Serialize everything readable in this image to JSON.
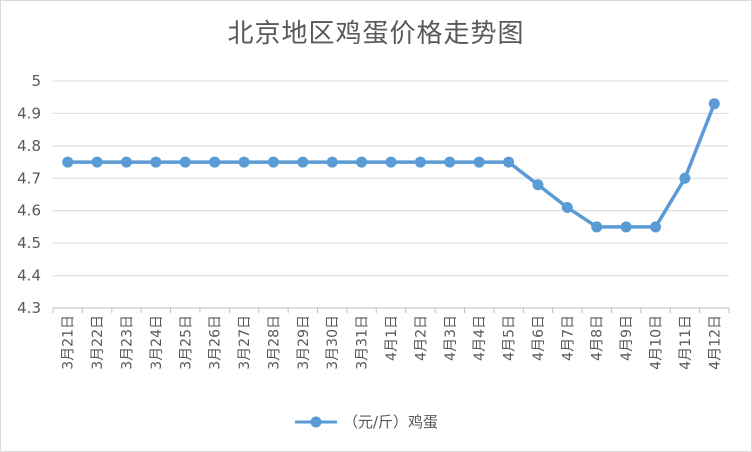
{
  "chart_data": {
    "type": "line",
    "title": "北京地区鸡蛋价格走势图",
    "categories": [
      "3月21日",
      "3月22日",
      "3月23日",
      "3月24日",
      "3月25日",
      "3月26日",
      "3月27日",
      "3月28日",
      "3月29日",
      "3月30日",
      "3月31日",
      "4月1日",
      "4月2日",
      "4月3日",
      "4月4日",
      "4月5日",
      "4月6日",
      "4月7日",
      "4月8日",
      "4月9日",
      "4月10日",
      "4月11日",
      "4月12日"
    ],
    "series": [
      {
        "name": "（元/斤）鸡蛋",
        "values": [
          4.75,
          4.75,
          4.75,
          4.75,
          4.75,
          4.75,
          4.75,
          4.75,
          4.75,
          4.75,
          4.75,
          4.75,
          4.75,
          4.75,
          4.75,
          4.75,
          4.68,
          4.61,
          4.55,
          4.55,
          4.55,
          4.7,
          4.93
        ]
      }
    ],
    "ylim": [
      4.3,
      5.0
    ],
    "yticks": [
      "4.3",
      "4.4",
      "4.5",
      "4.6",
      "4.7",
      "4.8",
      "4.9",
      "5"
    ],
    "grid": true,
    "legend": "bottom",
    "color": "#5b9bd5"
  }
}
